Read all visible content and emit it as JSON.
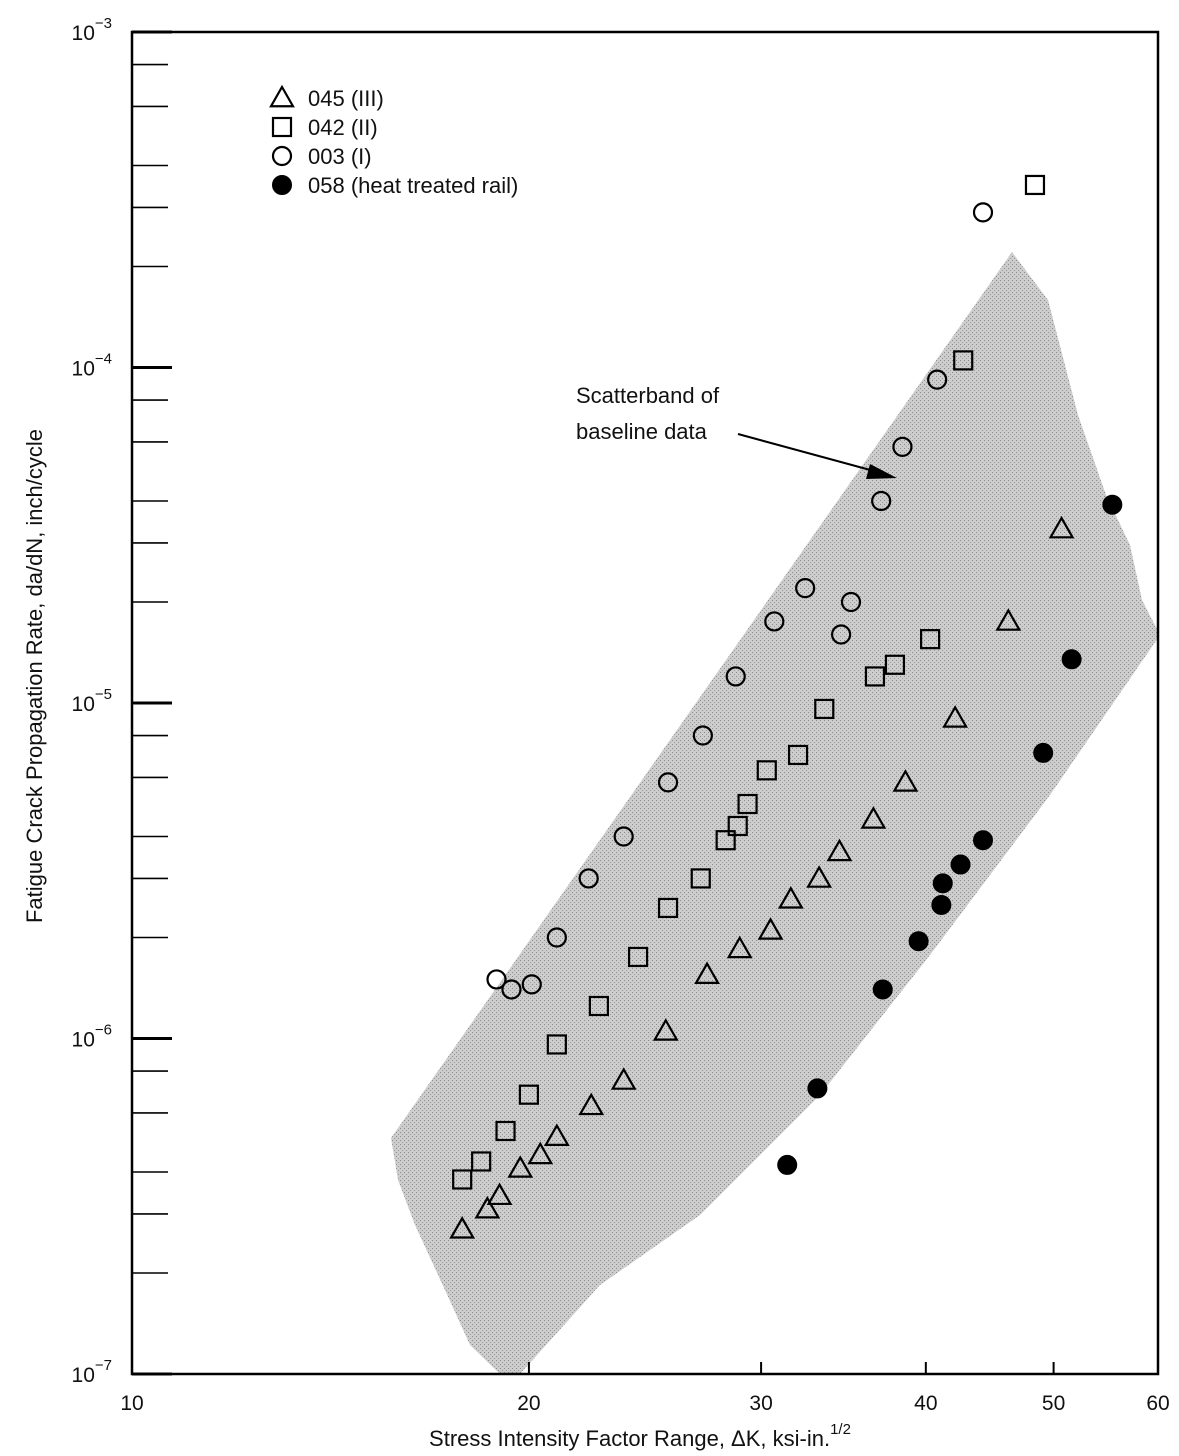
{
  "chart_data": {
    "type": "scatter",
    "xlabel": "Stress Intensity Factor Range, ΔK, ksi-in.",
    "xlabel_sup": "1/2",
    "ylabel": "Fatigue Crack Propagation Rate, da/dN, inch/cycle",
    "xscale": "log",
    "yscale": "log",
    "xlim": [
      10,
      60
    ],
    "ylim": [
      1e-07,
      0.001
    ],
    "x_ticks": [
      {
        "value": 10,
        "label": "10"
      },
      {
        "value": 20,
        "label": "20"
      },
      {
        "value": 30,
        "label": "30"
      },
      {
        "value": 40,
        "label": "40"
      },
      {
        "value": 50,
        "label": "50"
      },
      {
        "value": 60,
        "label": "60"
      }
    ],
    "y_ticks": [
      {
        "value": 1e-07,
        "base": "10",
        "exp": "−7"
      },
      {
        "value": 1e-06,
        "base": "10",
        "exp": "−6"
      },
      {
        "value": 1e-05,
        "base": "10",
        "exp": "−5"
      },
      {
        "value": 0.0001,
        "base": "10",
        "exp": "−4"
      },
      {
        "value": 0.001,
        "base": "10",
        "exp": "−3"
      }
    ],
    "annotation": {
      "lines": [
        "Scatterband of",
        "baseline data"
      ]
    },
    "legend_position": "top-left",
    "series": [
      {
        "name": "045 (III)",
        "marker": "triangle",
        "points": [
          [
            17.8,
            2.7e-07
          ],
          [
            18.6,
            3.1e-07
          ],
          [
            19.0,
            3.4e-07
          ],
          [
            19.7,
            4.1e-07
          ],
          [
            20.4,
            4.5e-07
          ],
          [
            21.0,
            5.1e-07
          ],
          [
            22.3,
            6.3e-07
          ],
          [
            23.6,
            7.5e-07
          ],
          [
            25.4,
            1.05e-06
          ],
          [
            27.3,
            1.55e-06
          ],
          [
            28.9,
            1.85e-06
          ],
          [
            30.5,
            2.1e-06
          ],
          [
            31.6,
            2.6e-06
          ],
          [
            33.2,
            3e-06
          ],
          [
            34.4,
            3.6e-06
          ],
          [
            36.5,
            4.5e-06
          ],
          [
            38.6,
            5.8e-06
          ],
          [
            42.1,
            9e-06
          ],
          [
            46.2,
            1.75e-05
          ],
          [
            50.7,
            3.3e-05
          ]
        ]
      },
      {
        "name": "042 (II)",
        "marker": "square",
        "points": [
          [
            17.8,
            3.8e-07
          ],
          [
            18.4,
            4.3e-07
          ],
          [
            19.2,
            5.3e-07
          ],
          [
            20.0,
            6.8e-07
          ],
          [
            21.0,
            9.6e-07
          ],
          [
            22.6,
            1.25e-06
          ],
          [
            24.2,
            1.75e-06
          ],
          [
            25.5,
            2.45e-06
          ],
          [
            27.0,
            3e-06
          ],
          [
            28.2,
            3.9e-06
          ],
          [
            28.8,
            4.3e-06
          ],
          [
            29.3,
            5e-06
          ],
          [
            30.3,
            6.3e-06
          ],
          [
            32.0,
            7e-06
          ],
          [
            33.5,
            9.6e-06
          ],
          [
            36.6,
            1.2e-05
          ],
          [
            37.9,
            1.3e-05
          ],
          [
            40.3,
            1.55e-05
          ],
          [
            42.7,
            0.000105
          ],
          [
            48.4,
            0.00035
          ]
        ]
      },
      {
        "name": "003 (I)",
        "marker": "circle",
        "points": [
          [
            18.9,
            1.5e-06
          ],
          [
            19.4,
            1.4e-06
          ],
          [
            20.1,
            1.45e-06
          ],
          [
            21.0,
            2e-06
          ],
          [
            22.2,
            3e-06
          ],
          [
            23.6,
            4e-06
          ],
          [
            25.5,
            5.8e-06
          ],
          [
            27.1,
            8e-06
          ],
          [
            28.7,
            1.2e-05
          ],
          [
            30.7,
            1.75e-05
          ],
          [
            32.4,
            2.2e-05
          ],
          [
            34.5,
            1.6e-05
          ],
          [
            35.1,
            2e-05
          ],
          [
            37.0,
            4e-05
          ],
          [
            38.4,
            5.8e-05
          ],
          [
            40.8,
            9.2e-05
          ],
          [
            44.2,
            0.00029
          ]
        ]
      },
      {
        "name": "058 (heat treated rail)",
        "marker": "filled-circle",
        "points": [
          [
            31.4,
            4.2e-07
          ],
          [
            33.1,
            7.1e-07
          ],
          [
            37.1,
            1.4e-06
          ],
          [
            39.5,
            1.95e-06
          ],
          [
            41.1,
            2.5e-06
          ],
          [
            41.2,
            2.9e-06
          ],
          [
            42.5,
            3.3e-06
          ],
          [
            44.2,
            3.9e-06
          ],
          [
            49.1,
            7.1e-06
          ],
          [
            51.6,
            1.35e-05
          ],
          [
            55.4,
            3.9e-05
          ]
        ]
      }
    ]
  }
}
